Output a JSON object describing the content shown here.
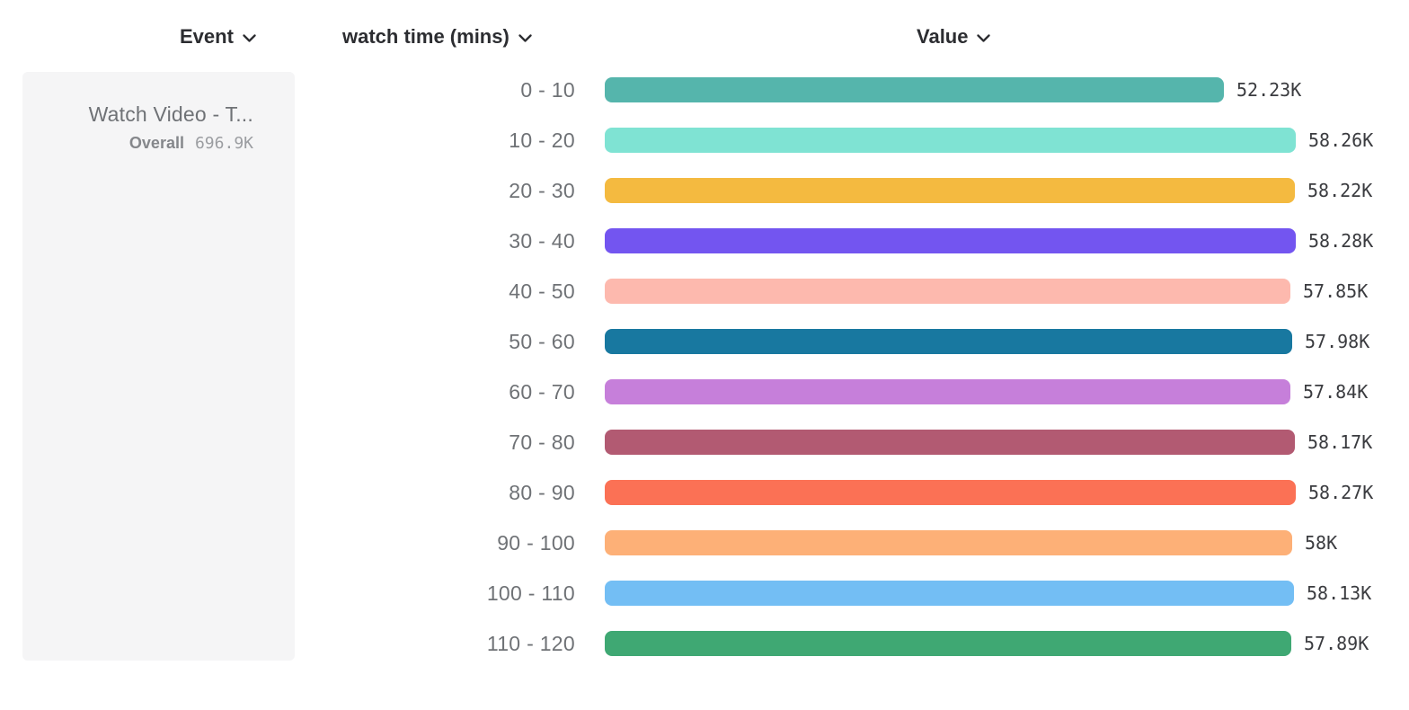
{
  "header": {
    "columns": [
      {
        "label": "Event"
      },
      {
        "label": "watch time (mins)"
      },
      {
        "label": "Value"
      }
    ]
  },
  "event_card": {
    "title": "Watch Video - T...",
    "overall_label": "Overall",
    "overall_value": "696.9K"
  },
  "colors": {
    "header_text": "#2c2d31",
    "label_text": "#6f7276",
    "value_text": "#3a3b3f",
    "card_bg": "#f5f5f6"
  },
  "chart_data": {
    "type": "bar",
    "orientation": "horizontal",
    "title": "",
    "xlabel": "Value",
    "ylabel": "watch time (mins)",
    "grid": false,
    "legend": "none",
    "axis_max": 58280,
    "categories": [
      "0 - 10",
      "10 - 20",
      "20 - 30",
      "30 - 40",
      "40 - 50",
      "50 - 60",
      "60 - 70",
      "70 - 80",
      "80 - 90",
      "90 - 100",
      "100 - 110",
      "110 - 120"
    ],
    "values": [
      52230,
      58260,
      58220,
      58280,
      57850,
      57980,
      57840,
      58170,
      58270,
      58000,
      58130,
      57890
    ],
    "value_labels": [
      "52.23K",
      "58.26K",
      "58.22K",
      "58.28K",
      "57.85K",
      "57.98K",
      "57.84K",
      "58.17K",
      "58.27K",
      "58K",
      "58.13K",
      "57.89K"
    ],
    "bar_colors": [
      "#55b5ac",
      "#7fe3d3",
      "#f4ba40",
      "#7355f0",
      "#fdb9ae",
      "#1878a0",
      "#c67fda",
      "#b25a72",
      "#fb7155",
      "#fdb077",
      "#73bef4",
      "#3fa873"
    ]
  }
}
